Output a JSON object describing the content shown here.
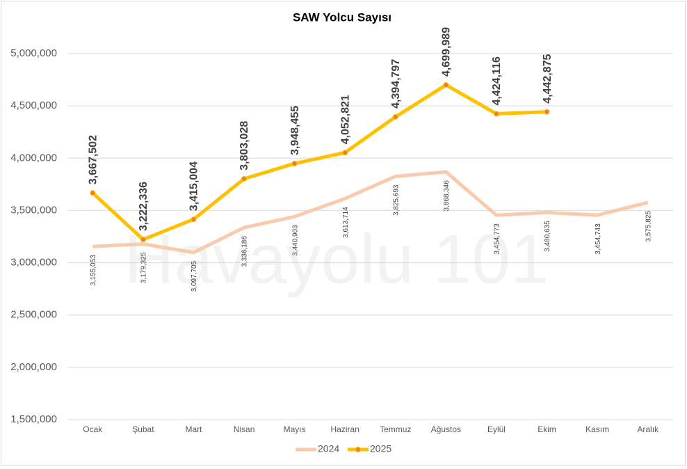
{
  "chart_data": {
    "type": "line",
    "title": "SAW Yolcu Sayısı",
    "watermark": "Havayolu 101",
    "categories": [
      "Ocak",
      "Şubat",
      "Mart",
      "Nisan",
      "Mayıs",
      "Haziran",
      "Temmuz",
      "Ağustos",
      "Eylül",
      "Ekim",
      "Kasım",
      "Aralık"
    ],
    "series": [
      {
        "name": "2024",
        "color": "#f8cbad",
        "values": [
          3155053,
          3179325,
          3097705,
          3336186,
          3440903,
          3613714,
          3825693,
          3868346,
          3454773,
          3480635,
          3454743,
          3575825
        ],
        "value_labels": [
          "3,155,053",
          "3,179,325",
          "3,097,705",
          "3,336,186",
          "3,440,903",
          "3,613,714",
          "3,825,693",
          "3,868,346",
          "3,454,773",
          "3,480,635",
          "3,454,743",
          "3,575,825"
        ]
      },
      {
        "name": "2025",
        "color": "#ffc000",
        "values": [
          3667502,
          3222336,
          3415004,
          3803028,
          3948455,
          4052821,
          4394797,
          4699989,
          4424116,
          4442875,
          null,
          null
        ],
        "value_labels": [
          "3,667,502",
          "3,222,336",
          "3,415,004",
          "3,803,028",
          "3,948,455",
          "4,052,821",
          "4,394,797",
          "4,699,989",
          "4,424,116",
          "4,442,875",
          null,
          null
        ]
      }
    ],
    "ylim": [
      1500000,
      5000000
    ],
    "yticks": [
      {
        "value": 1500000,
        "label": "1,500,000"
      },
      {
        "value": 2000000,
        "label": "2,000,000"
      },
      {
        "value": 2500000,
        "label": "2,500,000"
      },
      {
        "value": 3000000,
        "label": "3,000,000"
      },
      {
        "value": 3500000,
        "label": "3,500,000"
      },
      {
        "value": 4000000,
        "label": "4,000,000"
      },
      {
        "value": 4500000,
        "label": "4,500,000"
      },
      {
        "value": 5000000,
        "label": "5,000,000"
      }
    ],
    "grid": true,
    "legend": "bottom"
  }
}
